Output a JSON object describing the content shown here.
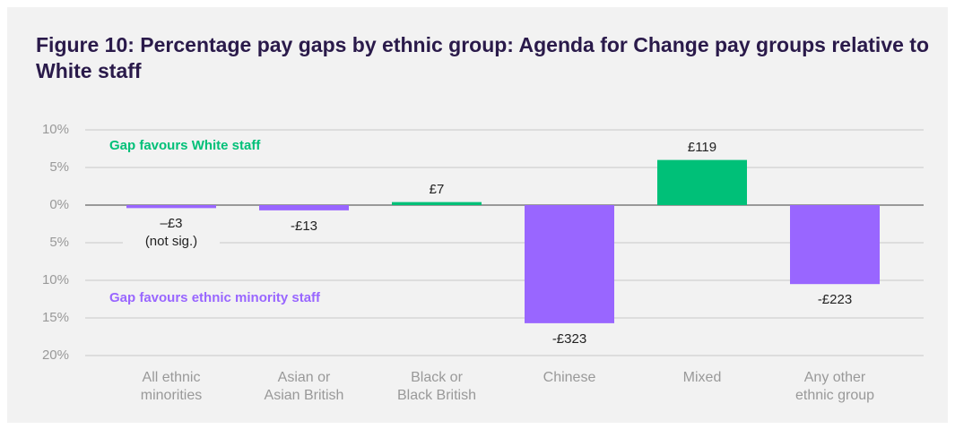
{
  "chart_data": {
    "type": "bar",
    "title": "Figure 10: Percentage pay gaps by ethnic group: Agenda for Change pay groups relative to White staff",
    "categories": [
      "All ethnic\nminorities",
      "Asian or\nAsian British",
      "Black or\nBlack British",
      "Chinese",
      "Mixed",
      "Any other\nethnic group"
    ],
    "values": [
      -0.4,
      -0.7,
      0.4,
      -15.7,
      6.0,
      -10.5
    ],
    "bar_labels": [
      "–£3\n(not sig.)",
      "-£13",
      "£7",
      "-£323",
      "£119",
      "-£223"
    ],
    "positive_color": "#00c078",
    "negative_color": "#9966ff",
    "annotations": [
      {
        "text": "Gap favours White staff",
        "color": "#00c078"
      },
      {
        "text": "Gap favours ethnic minority staff",
        "color": "#9966ff"
      }
    ],
    "ylim": [
      -20,
      10
    ],
    "yticks": [
      {
        "value": 10,
        "label": "10%"
      },
      {
        "value": 5,
        "label": "5%"
      },
      {
        "value": 0,
        "label": "0%"
      },
      {
        "value": -5,
        "label": "5%"
      },
      {
        "value": -10,
        "label": "10%"
      },
      {
        "value": -15,
        "label": "15%"
      },
      {
        "value": -20,
        "label": "20%"
      }
    ],
    "grid": true
  }
}
